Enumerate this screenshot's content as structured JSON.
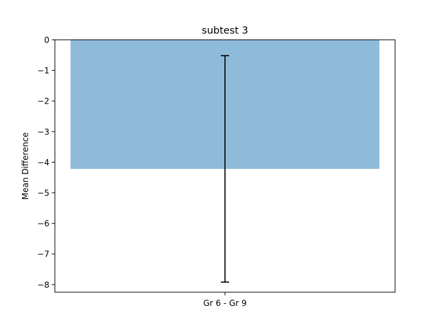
{
  "chart_data": {
    "type": "bar",
    "title": "subtest 3",
    "xlabel": "",
    "ylabel": "Mean Difference",
    "categories": [
      "Gr 6 - Gr 9"
    ],
    "values": [
      -4.22
    ],
    "error_bars": [
      {
        "low": -7.92,
        "high": -0.52
      }
    ],
    "ylim": [
      -8.25,
      0
    ],
    "yticks": [
      0,
      -1,
      -2,
      -3,
      -4,
      -5,
      -6,
      -7,
      -8
    ],
    "ytick_labels": [
      "0",
      "−1",
      "−2",
      "−3",
      "−4",
      "−5",
      "−6",
      "−7",
      "−8"
    ],
    "grid": false,
    "legend": "none",
    "colors": {
      "bar": "#8fbbda",
      "error": "#000000",
      "axes": "#000000"
    }
  }
}
